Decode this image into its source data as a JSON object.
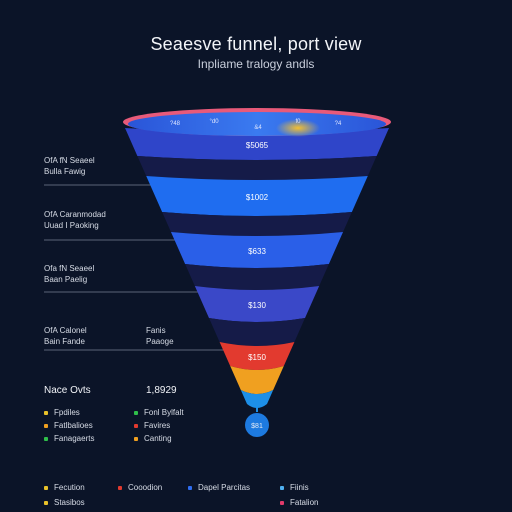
{
  "chart_data": {
    "type": "funnel",
    "title": "Seaesve funnel, port view",
    "subtitle": "Inpliame tralogy andls",
    "rim_labels": [
      "?48",
      "°d0",
      "&4",
      "f0",
      "?4"
    ],
    "stages": [
      {
        "label": "$5065",
        "color": "#2f45c9"
      },
      {
        "label": "$1002",
        "color": "#1f6df0"
      },
      {
        "label": "$633",
        "color": "#2a5fe8"
      },
      {
        "label": "$130",
        "color": "#3a48c8"
      },
      {
        "label": "$150",
        "color": "#e23a2f"
      },
      {
        "label": "",
        "color": "#f0a020"
      },
      {
        "label": "",
        "color": "#1d8fe8"
      }
    ],
    "tip_label": "$81"
  },
  "side_labels": [
    {
      "line1": "OfA fN Seaeel",
      "line2": "Bulla Fawig"
    },
    {
      "line1": "OfA Caranmodad",
      "line2": "Uuad I Paoking"
    },
    {
      "line1": "Ofa fN Seaeel",
      "line2": "Baan Paelig"
    },
    {
      "line1": "OfA Calonel",
      "line2": "Bain Fande"
    }
  ],
  "mid_label": {
    "line1": "Fanis",
    "line2": "Paaoge"
  },
  "summary": {
    "title": "Nace Ovts",
    "value": "1,8929"
  },
  "legend": [
    {
      "label": "Fpdiles",
      "color": "#e8c12a"
    },
    {
      "label": "Fatlbalioes",
      "color": "#f0a020"
    },
    {
      "label": "Fanagaerts",
      "color": "#2fbf4a"
    },
    {
      "label": "Fonl Bylfalt",
      "color": "#2fbf4a"
    },
    {
      "label": "Favires",
      "color": "#e23a2f"
    },
    {
      "label": "Canting",
      "color": "#f0a020"
    }
  ],
  "bottom_legend": [
    {
      "label": "Fecution",
      "color": "#e8c12a"
    },
    {
      "label": "Cooodion",
      "color": "#e23a2f"
    },
    {
      "label": "Dapel Parcitas",
      "color": "#2f6df0"
    },
    {
      "label": "Fiinis",
      "color": "#4fb0f0"
    },
    {
      "label": "Stasibos",
      "color": "#e8c12a"
    },
    {
      "label": "Fatalion",
      "color": "#e23a6a"
    }
  ]
}
